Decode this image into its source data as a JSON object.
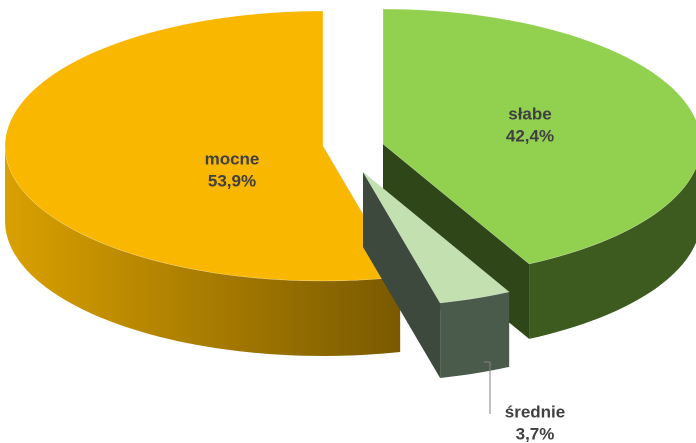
{
  "chart_data": {
    "type": "pie",
    "categories": [
      "słabe",
      "średnie",
      "mocne"
    ],
    "values": [
      42.4,
      3.7,
      53.9
    ],
    "value_labels": [
      "42,4%",
      "3,7%",
      "53,9%"
    ],
    "colors": [
      "#92d050",
      "#c3e0b0",
      "#f9b700"
    ]
  }
}
